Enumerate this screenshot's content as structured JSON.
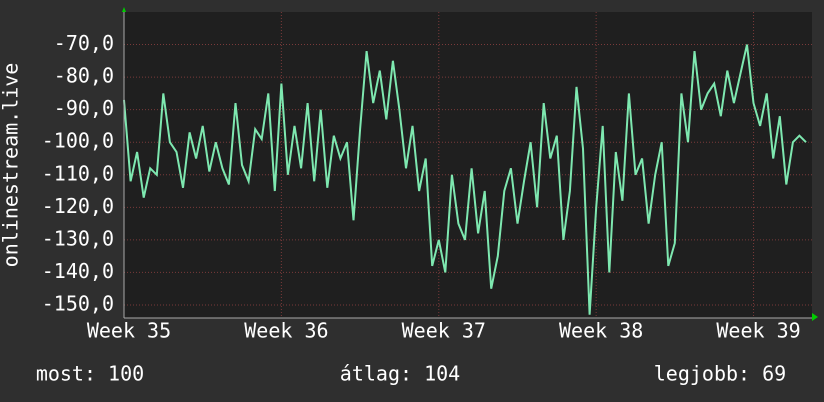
{
  "chart_data": {
    "type": "line",
    "y_label": "onlinestream.live",
    "categories": [
      "Week 35",
      null,
      null,
      null,
      null,
      null,
      null,
      null,
      null,
      null,
      null,
      null,
      null,
      null,
      null,
      null,
      null,
      null,
      null,
      null,
      null,
      null,
      null,
      null,
      "Week 36",
      null,
      null,
      null,
      null,
      null,
      null,
      null,
      null,
      null,
      null,
      null,
      null,
      null,
      null,
      null,
      null,
      null,
      null,
      null,
      null,
      null,
      null,
      null,
      "Week 37",
      null,
      null,
      null,
      null,
      null,
      null,
      null,
      null,
      null,
      null,
      null,
      null,
      null,
      null,
      null,
      null,
      null,
      null,
      null,
      null,
      null,
      null,
      null,
      "Week 38",
      null,
      null,
      null,
      null,
      null,
      null,
      null,
      null,
      null,
      null,
      null,
      null,
      null,
      null,
      null,
      null,
      null,
      null,
      null,
      null,
      null,
      null,
      null,
      "Week 39",
      null,
      null,
      null,
      null,
      null,
      null,
      null,
      null
    ],
    "series": [
      {
        "color": "#7ee8b0",
        "values": [
          -87,
          -112,
          -103,
          -117,
          -108,
          -110,
          -85,
          -100,
          -103,
          -114,
          -97,
          -105,
          -95,
          -109,
          -100,
          -108,
          -113,
          -88,
          -107,
          -112,
          -96,
          -99,
          -85,
          -115,
          -82,
          -110,
          -95,
          -108,
          -88,
          -112,
          -90,
          -114,
          -98,
          -105,
          -100,
          -124,
          -96,
          -72,
          -88,
          -78,
          -93,
          -75,
          -90,
          -108,
          -95,
          -115,
          -105,
          -138,
          -130,
          -140,
          -110,
          -125,
          -130,
          -108,
          -128,
          -115,
          -145,
          -135,
          -115,
          -108,
          -125,
          -112,
          -100,
          -120,
          -88,
          -105,
          -98,
          -130,
          -115,
          -83,
          -102,
          -153,
          -120,
          -95,
          -140,
          -103,
          -118,
          -85,
          -110,
          -105,
          -125,
          -110,
          -100,
          -138,
          -131,
          -85,
          -100,
          -72,
          -90,
          -85,
          -82,
          -92,
          -78,
          -88,
          -79,
          -70,
          -88,
          -95,
          -85,
          -105,
          -92,
          -113,
          -100,
          -98,
          -100
        ]
      }
    ],
    "ylim": [
      -154,
      -60
    ],
    "yticks": [
      {
        "value": -150,
        "label": "-150,0"
      },
      {
        "value": -140,
        "label": "-140,0"
      },
      {
        "value": -130,
        "label": "-130,0"
      },
      {
        "value": -120,
        "label": "-120,0"
      },
      {
        "value": -110,
        "label": "-110,0"
      },
      {
        "value": -100,
        "label": "-100,0"
      },
      {
        "value": -90,
        "label": "-90,0"
      },
      {
        "value": -80,
        "label": "-80,0"
      },
      {
        "value": -70,
        "label": "-70,0"
      }
    ],
    "grid": true,
    "legend": [
      "most: 100",
      "átlag: 104",
      "legjobb: 69"
    ]
  }
}
